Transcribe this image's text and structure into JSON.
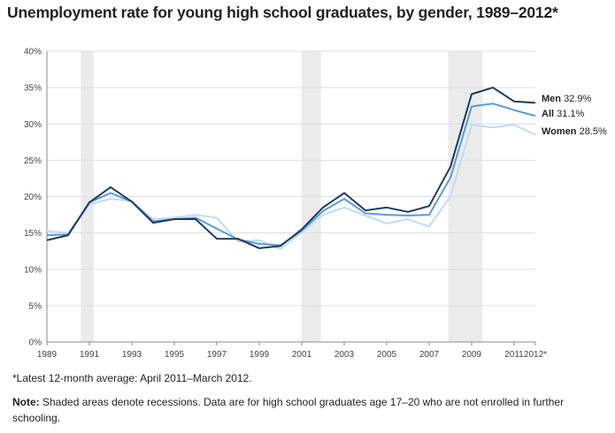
{
  "chart_data": {
    "type": "line",
    "title": "Unemployment rate for young high school graduates, by gender, 1989–2012*",
    "xlabel": "",
    "ylabel": "",
    "x": [
      1989,
      1990,
      1991,
      1992,
      1993,
      1994,
      1995,
      1996,
      1997,
      1998,
      1999,
      2000,
      2001,
      2002,
      2003,
      2004,
      2005,
      2006,
      2007,
      2008,
      2009,
      2010,
      2011,
      2012
    ],
    "x_tick_values": [
      1989,
      1991,
      1993,
      1995,
      1997,
      1999,
      2001,
      2003,
      2005,
      2007,
      2009,
      2011,
      2012
    ],
    "x_tick_labels": [
      "1989",
      "1991",
      "1993",
      "1995",
      "1997",
      "1999",
      "2001",
      "2003",
      "2005",
      "2007",
      "2009",
      "2011",
      "2012*"
    ],
    "y_ticks": [
      0,
      5,
      10,
      15,
      20,
      25,
      30,
      35,
      40
    ],
    "y_tick_labels": [
      "0%",
      "5%",
      "10%",
      "15%",
      "20%",
      "25%",
      "30%",
      "35%",
      "40%"
    ],
    "ylim": [
      0,
      40
    ],
    "xlim": [
      1989,
      2012
    ],
    "grid": "horizontal",
    "recessions": [
      [
        1990.6,
        1991.2
      ],
      [
        2001.0,
        2001.9
      ],
      [
        2007.9,
        2009.5
      ]
    ],
    "series": [
      {
        "name": "Men",
        "end_label": "32.9%",
        "color": "#1e3a5f",
        "values": [
          14.0,
          14.7,
          19.2,
          21.3,
          19.3,
          16.4,
          16.9,
          16.9,
          14.2,
          14.2,
          12.9,
          13.2,
          15.5,
          18.5,
          20.5,
          18.1,
          18.5,
          17.9,
          18.7,
          24.1,
          34.1,
          35.0,
          33.1,
          32.9
        ]
      },
      {
        "name": "All",
        "end_label": "31.1%",
        "color": "#5b9bd5",
        "values": [
          14.7,
          14.8,
          19.2,
          20.5,
          19.3,
          16.6,
          16.9,
          17.1,
          15.6,
          14.1,
          13.5,
          13.3,
          15.3,
          18.0,
          19.7,
          17.7,
          17.5,
          17.4,
          17.5,
          22.6,
          32.4,
          32.8,
          31.9,
          31.1
        ]
      },
      {
        "name": "Women",
        "end_label": "28.5%",
        "color": "#c5daf0",
        "values": [
          15.3,
          15.0,
          18.9,
          19.7,
          19.4,
          16.9,
          17.1,
          17.5,
          17.1,
          13.8,
          14.0,
          12.8,
          15.1,
          17.5,
          18.5,
          17.4,
          16.3,
          16.9,
          15.9,
          20.0,
          29.9,
          29.5,
          29.9,
          28.5
        ]
      }
    ]
  },
  "footnote": "*Latest 12-month average: April 2011–March 2012.",
  "note": {
    "label": "Note:",
    "text": " Shaded areas denote recessions. Data are for high school graduates age 17–20 who are not enrolled in further schooling."
  }
}
